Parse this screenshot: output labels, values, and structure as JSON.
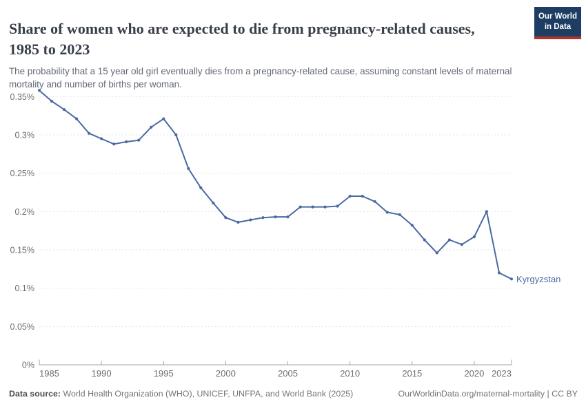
{
  "header": {
    "title": "Share of women who are expected to die from pregnancy-related causes, 1985 to 2023",
    "subtitle": "The probability that a 15 year old girl eventually dies from a pregnancy-related cause, assuming constant levels of maternal mortality and number of births per woman.",
    "logo": {
      "line1": "Our World",
      "line2": "in Data",
      "bg_color": "#1d3d63",
      "bar_color": "#b0332c",
      "text_color": "#ffffff"
    }
  },
  "chart_data": {
    "type": "line",
    "title": "Share of women who are expected to die from pregnancy-related causes, 1985 to 2023",
    "xlabel": "",
    "ylabel": "",
    "xlim": [
      1985,
      2023
    ],
    "ylim": [
      0,
      0.37
    ],
    "grid": "horizontal-dashed",
    "legend_position": "end-of-line-label",
    "x_ticks": [
      {
        "value": 1985,
        "label": "1985"
      },
      {
        "value": 1990,
        "label": "1990"
      },
      {
        "value": 1995,
        "label": "1995"
      },
      {
        "value": 2000,
        "label": "2000"
      },
      {
        "value": 2005,
        "label": "2005"
      },
      {
        "value": 2010,
        "label": "2010"
      },
      {
        "value": 2015,
        "label": "2015"
      },
      {
        "value": 2020,
        "label": "2020"
      },
      {
        "value": 2023,
        "label": "2023"
      }
    ],
    "y_ticks": [
      {
        "value": 0,
        "label": "0%"
      },
      {
        "value": 0.05,
        "label": "0.05%"
      },
      {
        "value": 0.1,
        "label": "0.1%"
      },
      {
        "value": 0.15,
        "label": "0.15%"
      },
      {
        "value": 0.2,
        "label": "0.2%"
      },
      {
        "value": 0.25,
        "label": "0.25%"
      },
      {
        "value": 0.3,
        "label": "0.3%"
      },
      {
        "value": 0.35,
        "label": "0.35%"
      }
    ],
    "series": [
      {
        "name": "Kyrgyzstan",
        "color": "#4a69a2",
        "unit": "%",
        "x": [
          1985,
          1986,
          1987,
          1988,
          1989,
          1990,
          1991,
          1992,
          1993,
          1994,
          1995,
          1996,
          1997,
          1998,
          1999,
          2000,
          2001,
          2002,
          2003,
          2004,
          2005,
          2006,
          2007,
          2008,
          2009,
          2010,
          2011,
          2012,
          2013,
          2014,
          2015,
          2016,
          2017,
          2018,
          2019,
          2020,
          2021,
          2022,
          2023
        ],
        "values": [
          0.358,
          0.344,
          0.333,
          0.321,
          0.302,
          0.295,
          0.288,
          0.291,
          0.293,
          0.31,
          0.321,
          0.3,
          0.256,
          0.231,
          0.211,
          0.192,
          0.186,
          0.189,
          0.192,
          0.193,
          0.193,
          0.206,
          0.206,
          0.206,
          0.207,
          0.22,
          0.22,
          0.213,
          0.199,
          0.196,
          0.182,
          0.163,
          0.146,
          0.163,
          0.157,
          0.167,
          0.2,
          0.12,
          0.112
        ]
      }
    ],
    "colors": {
      "gridline": "#e3e3e3",
      "axis": "#a6a6a6",
      "tick_label": "#6e6e6e"
    }
  },
  "footer": {
    "data_source_label": "Data source:",
    "data_source_text": " World Health Organization (WHO), UNICEF, UNFPA, and World Bank (2025)",
    "license_text": "OurWorldinData.org/maternal-mortality | CC BY"
  }
}
